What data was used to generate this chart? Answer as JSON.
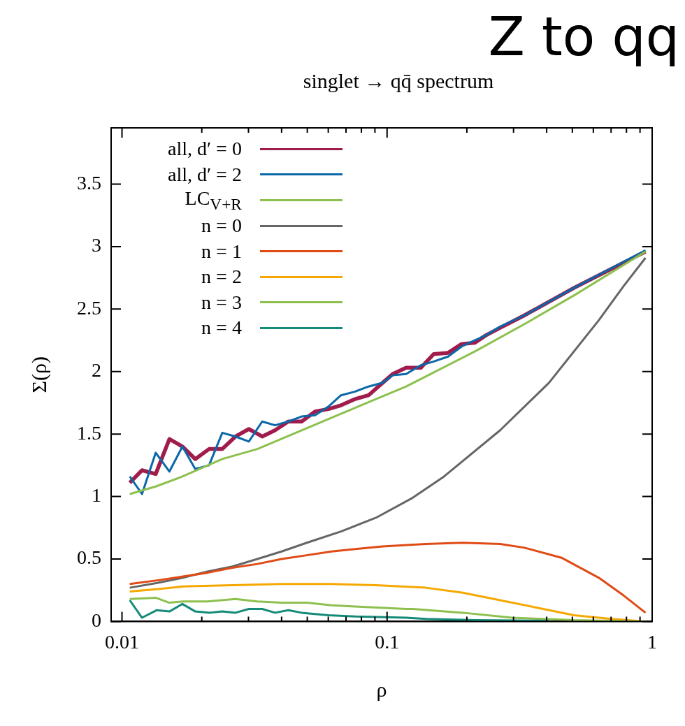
{
  "chart_data": {
    "type": "line",
    "title": "Z to qq",
    "subtitle": "singlet → qq̄ spectrum",
    "xlabel": "ρ",
    "ylabel": "Σ(ρ)",
    "log": "x",
    "grid": false,
    "legend": "top left",
    "marker": "none",
    "line_style": "solid",
    "xlim": [
      0.0091,
      1
    ],
    "ylim": [
      0,
      3.95
    ],
    "xticks": [
      {
        "value": 0.01,
        "label": "0.01"
      },
      {
        "value": 0.02,
        "label": null
      },
      {
        "value": 0.03,
        "label": null
      },
      {
        "value": 0.04,
        "label": null
      },
      {
        "value": 0.05,
        "label": null
      },
      {
        "value": 0.06,
        "label": null
      },
      {
        "value": 0.07,
        "label": null
      },
      {
        "value": 0.08,
        "label": null
      },
      {
        "value": 0.09,
        "label": null
      },
      {
        "value": 0.1,
        "label": "0.1"
      },
      {
        "value": 0.2,
        "label": null
      },
      {
        "value": 0.3,
        "label": null
      },
      {
        "value": 0.4,
        "label": null
      },
      {
        "value": 0.5,
        "label": null
      },
      {
        "value": 0.6,
        "label": null
      },
      {
        "value": 0.7,
        "label": null
      },
      {
        "value": 0.8,
        "label": null
      },
      {
        "value": 0.9,
        "label": null
      },
      {
        "value": 1,
        "label": "1"
      }
    ],
    "yticks": [
      0,
      0.5,
      1,
      1.5,
      2,
      2.5,
      3,
      3.5
    ],
    "series": [
      {
        "name": "all, d′ = 0",
        "color": "#a01c4c",
        "x": [
          0.0107,
          0.0119,
          0.0134,
          0.0151,
          0.0169,
          0.0189,
          0.0213,
          0.0239,
          0.0268,
          0.0301,
          0.0338,
          0.0378,
          0.0424,
          0.0476,
          0.0535,
          0.0601,
          0.067,
          0.0758,
          0.0851,
          0.0962,
          0.105,
          0.118,
          0.134,
          0.15,
          0.17,
          0.191,
          0.214,
          0.236,
          0.267,
          0.33,
          0.508,
          0.944
        ],
        "values": [
          1.11,
          1.21,
          1.18,
          1.46,
          1.4,
          1.3,
          1.38,
          1.38,
          1.48,
          1.54,
          1.48,
          1.53,
          1.6,
          1.6,
          1.68,
          1.7,
          1.73,
          1.78,
          1.81,
          1.91,
          1.98,
          2.03,
          2.03,
          2.14,
          2.15,
          2.22,
          2.23,
          2.29,
          2.35,
          2.45,
          2.67,
          2.96
        ]
      },
      {
        "name": "all, d′ = 2",
        "color": "#0a68a8",
        "x": [
          0.0107,
          0.0119,
          0.0134,
          0.0151,
          0.0169,
          0.0189,
          0.0213,
          0.0239,
          0.0268,
          0.0301,
          0.0338,
          0.0378,
          0.0424,
          0.0476,
          0.0535,
          0.0601,
          0.067,
          0.0758,
          0.0851,
          0.0962,
          0.105,
          0.118,
          0.134,
          0.15,
          0.17,
          0.191,
          0.214,
          0.236,
          0.267,
          0.33,
          0.508,
          0.944
        ],
        "values": [
          1.16,
          1.02,
          1.35,
          1.2,
          1.4,
          1.22,
          1.25,
          1.51,
          1.48,
          1.44,
          1.6,
          1.57,
          1.6,
          1.64,
          1.65,
          1.72,
          1.81,
          1.84,
          1.88,
          1.91,
          1.97,
          1.98,
          2.05,
          2.08,
          2.12,
          2.2,
          2.25,
          2.29,
          2.36,
          2.45,
          2.67,
          2.97
        ]
      },
      {
        "name": "LC$_{V+R}$",
        "color": "#8dc04e",
        "x": [
          0.0107,
          0.0134,
          0.0169,
          0.0239,
          0.0324,
          0.0617,
          0.0908,
          0.118,
          0.214,
          0.33,
          0.508,
          0.944
        ],
        "values": [
          1.02,
          1.08,
          1.16,
          1.3,
          1.38,
          1.63,
          1.78,
          1.88,
          2.16,
          2.38,
          2.61,
          2.96
        ]
      },
      {
        "name": "n = 0",
        "color": "#666666",
        "x": [
          0.0107,
          0.0137,
          0.017,
          0.021,
          0.0261,
          0.0324,
          0.04,
          0.0498,
          0.067,
          0.0908,
          0.125,
          0.164,
          0.267,
          0.408,
          0.629,
          0.778,
          0.944
        ],
        "values": [
          0.27,
          0.31,
          0.35,
          0.4,
          0.44,
          0.5,
          0.56,
          0.63,
          0.72,
          0.83,
          0.99,
          1.16,
          1.53,
          1.91,
          2.41,
          2.68,
          2.91
        ]
      },
      {
        "name": "n = 1",
        "color": "#e04a14",
        "x": [
          0.0107,
          0.0137,
          0.017,
          0.021,
          0.0261,
          0.0324,
          0.04,
          0.0498,
          0.0617,
          0.0758,
          0.0962,
          0.14,
          0.193,
          0.267,
          0.33,
          0.455,
          0.629,
          0.778,
          0.944
        ],
        "values": [
          0.3,
          0.33,
          0.36,
          0.39,
          0.43,
          0.46,
          0.5,
          0.53,
          0.56,
          0.58,
          0.6,
          0.62,
          0.63,
          0.62,
          0.59,
          0.51,
          0.35,
          0.21,
          0.07
        ]
      },
      {
        "name": "n = 2",
        "color": "#f5a800",
        "x": [
          0.0107,
          0.0137,
          0.017,
          0.0261,
          0.04,
          0.0617,
          0.0908,
          0.14,
          0.193,
          0.267,
          0.368,
          0.508,
          0.701,
          0.944
        ],
        "values": [
          0.24,
          0.26,
          0.28,
          0.29,
          0.3,
          0.3,
          0.29,
          0.27,
          0.23,
          0.17,
          0.11,
          0.05,
          0.02,
          0
        ]
      },
      {
        "name": "n = 3",
        "color": "#8dc04e",
        "x": [
          0.0107,
          0.0134,
          0.0151,
          0.017,
          0.021,
          0.0268,
          0.0324,
          0.04,
          0.0498,
          0.0617,
          0.0758,
          0.118,
          0.125,
          0.193,
          0.296,
          0.508,
          0.944
        ],
        "values": [
          0.18,
          0.19,
          0.15,
          0.16,
          0.16,
          0.18,
          0.16,
          0.15,
          0.15,
          0.13,
          0.12,
          0.1,
          0.1,
          0.07,
          0.03,
          0.01,
          0
        ]
      },
      {
        "name": "n = 4",
        "color": "#148a78",
        "x": [
          0.0107,
          0.0119,
          0.0135,
          0.0151,
          0.0169,
          0.0189,
          0.0215,
          0.0239,
          0.0268,
          0.0301,
          0.0338,
          0.0378,
          0.0424,
          0.0476,
          0.0535,
          0.0601,
          0.0758,
          0.118,
          0.14,
          0.214,
          0.408
        ],
        "values": [
          0.17,
          0.03,
          0.09,
          0.08,
          0.14,
          0.08,
          0.07,
          0.08,
          0.07,
          0.1,
          0.1,
          0.07,
          0.09,
          0.07,
          0.06,
          0.05,
          0.04,
          0.03,
          0.02,
          0.01,
          0.005
        ]
      }
    ]
  }
}
